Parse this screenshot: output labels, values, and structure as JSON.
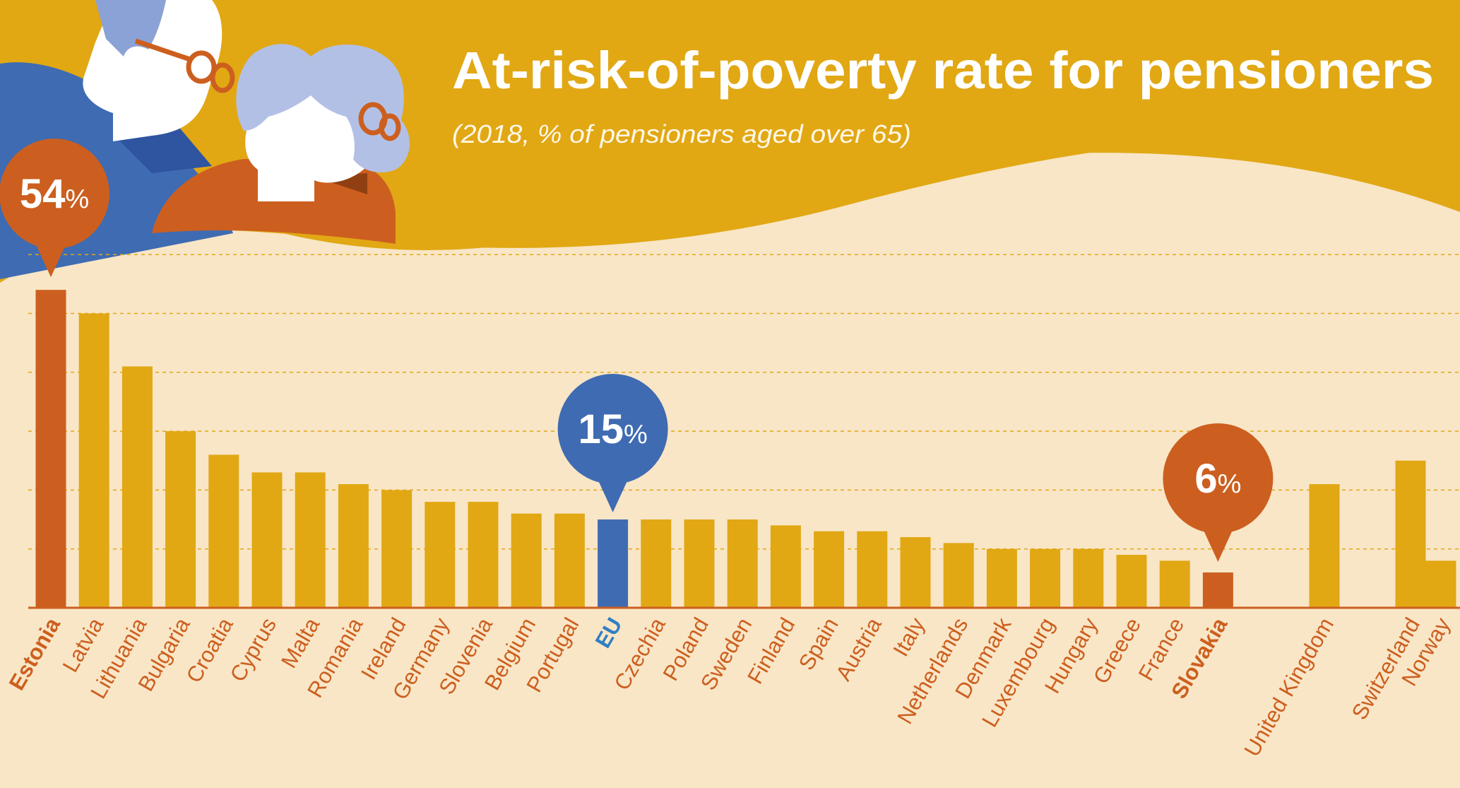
{
  "header": {
    "title": "At-risk-of-poverty rate for pensioners",
    "subtitle": "(2018, % of pensioners aged over 65)"
  },
  "colors": {
    "background": "#f9e6c7",
    "band": "#e1a814",
    "bar": "#e1a814",
    "highlight": "#cc5f1f",
    "eu": "#3f6bb2",
    "label": "#cc5f1f",
    "eu_label": "#2f7fc2",
    "grid": "#e1a814",
    "illustration_blue": "#3f6bb2",
    "illustration_light_blue": "#8ba2d6",
    "illustration_orange": "#cc5f1f"
  },
  "illustration": {
    "name": "two-pensioners-illustration"
  },
  "chart_data": {
    "type": "bar",
    "title": "At-risk-of-poverty rate for pensioners",
    "subtitle": "(2018, % of pensioners aged over 65)",
    "unit": "%",
    "ylim": [
      0,
      55
    ],
    "grid": true,
    "categories": [
      "Estonia",
      "Latvia",
      "Lithuania",
      "Bulgaria",
      "Croatia",
      "Cyprus",
      "Malta",
      "Romania",
      "Ireland",
      "Germany",
      "Slovenia",
      "Belgium",
      "Portugal",
      "EU",
      "Czechia",
      "Poland",
      "Sweden",
      "Finland",
      "Spain",
      "Austria",
      "Italy",
      "Netherlands",
      "Denmark",
      "Luxembourg",
      "Hungary",
      "Greece",
      "France",
      "Slovakia",
      "United Kingdom",
      "Switzerland",
      "Norway"
    ],
    "values": [
      54,
      50,
      41,
      30,
      26,
      23,
      23,
      21,
      20,
      18,
      18,
      16,
      16,
      15,
      15,
      15,
      15,
      14,
      13,
      13,
      12,
      11,
      10,
      10,
      10,
      9,
      8,
      6,
      21,
      25,
      8
    ],
    "highlight": {
      "Estonia": "highlight",
      "EU": "eu",
      "Slovakia": "highlight"
    },
    "callouts": [
      {
        "category": "Estonia",
        "number": "54",
        "unit": "%",
        "color": "highlight"
      },
      {
        "category": "EU",
        "number": "15",
        "unit": "%",
        "color": "eu"
      },
      {
        "category": "Slovakia",
        "number": "6",
        "unit": "%",
        "color": "highlight"
      }
    ]
  }
}
